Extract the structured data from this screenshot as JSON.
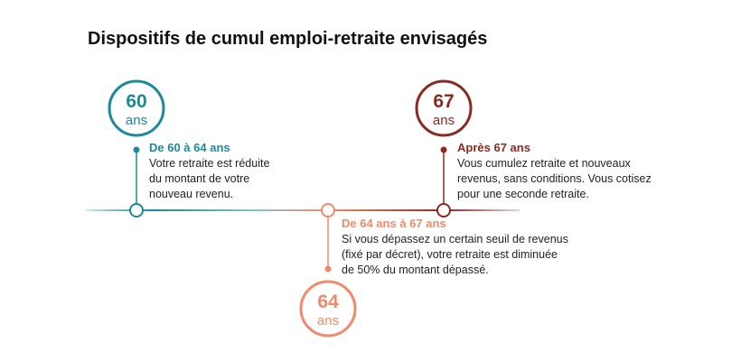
{
  "title": "Dispositifs de cumul emploi-retraite envisagés",
  "milestones": [
    {
      "age": "60",
      "unit": "ans",
      "heading": "De 60 à 64 ans",
      "lines": [
        "Votre retraite est réduite",
        "du montant de votre",
        "nouveau revenu."
      ]
    },
    {
      "age": "64",
      "unit": "ans",
      "heading": "De 64 ans à 67 ans",
      "lines": [
        "Si vous dépassez un certain seuil de revenus",
        "(fixé par décret), votre retraite est diminuée",
        "de 50% du montant dépassé."
      ]
    },
    {
      "age": "67",
      "unit": "ans",
      "heading": "Après 67 ans",
      "lines": [
        "Vous cumulez retraite et nouveaux",
        "revenus, sans conditions. Vous cotisez",
        "pour une seconde retraite."
      ]
    }
  ]
}
